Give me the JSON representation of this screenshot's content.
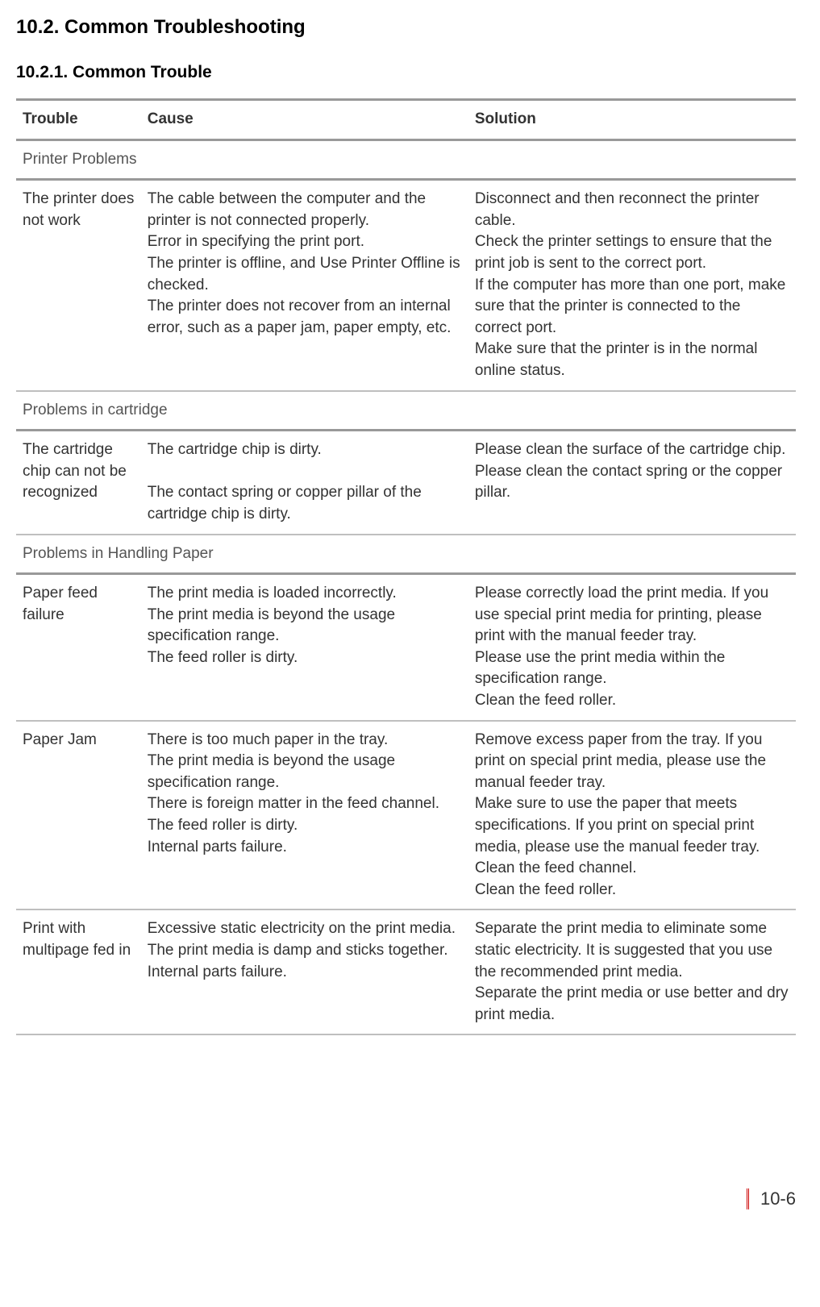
{
  "headings": {
    "section": "10.2. Common Troubleshooting",
    "subsection": "10.2.1. Common Trouble"
  },
  "table": {
    "headers": {
      "trouble": "Trouble",
      "cause": "Cause",
      "solution": "Solution"
    },
    "categories": [
      {
        "label": "Printer Problems",
        "rows": [
          {
            "trouble": "The printer does not work",
            "cause": "The cable between the computer and the printer is not connected properly.\nError in specifying the print port.\nThe printer is offline, and Use Printer Offline is checked.\nThe printer does not recover from an internal error, such as a paper jam, paper empty, etc.",
            "solution": "Disconnect and then reconnect the printer cable.\nCheck the printer settings to ensure that the print job is sent to the correct port.\nIf the computer has more than one port, make sure that the printer is connected to the correct port.\nMake sure that the printer is in the normal online status."
          }
        ]
      },
      {
        "label": "Problems in cartridge",
        "rows": [
          {
            "trouble": "The cartridge chip can not be recognized",
            "cause": "The cartridge chip is dirty.\n\nThe contact spring or copper pillar of the cartridge chip is dirty.",
            "solution": "Please clean the surface of the cartridge chip.\nPlease clean the contact spring or the copper pillar."
          }
        ]
      },
      {
        "label": "Problems in Handling Paper",
        "rows": [
          {
            "trouble": "Paper feed failure",
            "cause": "The print media is loaded incorrectly.\nThe print media is beyond the usage specification range.\nThe feed roller is dirty.",
            "solution": "Please correctly load the print media. If you use special print media for printing, please print with the manual feeder tray.\nPlease use the print media within the specification range.\nClean the feed roller."
          },
          {
            "trouble": "Paper Jam",
            "cause": "There is too much paper in the tray.\nThe print media is beyond the usage specification range.\nThere is foreign matter in the feed channel.\nThe feed roller is dirty.\nInternal parts failure.",
            "solution": "Remove excess paper from the tray. If you print on special print media, please use the manual feeder tray.\nMake sure to use the paper that meets specifications. If you print on special print media, please use the manual feeder tray.\nClean the feed channel.\nClean the feed roller."
          },
          {
            "trouble": "Print with multipage fed in",
            "cause": "Excessive static electricity on the print media.\nThe print media is damp and sticks together.\nInternal parts failure.",
            "solution": "Separate the print media to eliminate some static electricity. It is suggested that you use the recommended print media.\nSeparate the print media or use better and dry print media."
          }
        ]
      }
    ]
  },
  "footer": {
    "page_number": "10-6"
  },
  "colors": {
    "rule_heavy": "#999999",
    "rule_light": "#bfbfbf",
    "accent": "#cc0000",
    "text": "#333333"
  }
}
